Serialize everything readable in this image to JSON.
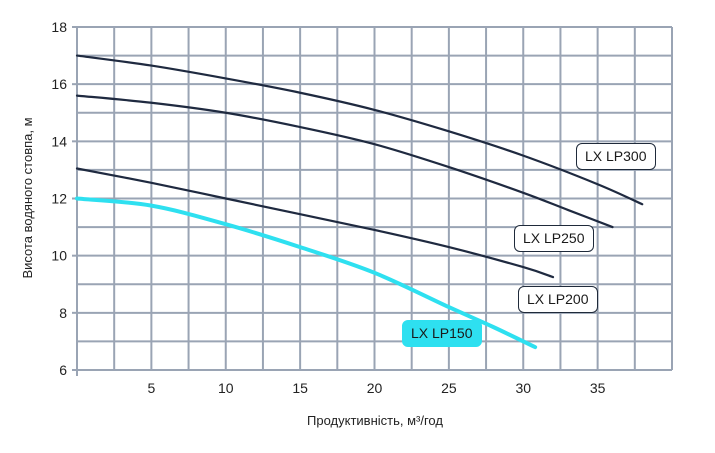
{
  "chart_data": {
    "type": "line",
    "title": "",
    "xlabel": "Продуктивність, м³/год",
    "ylabel": "Висота водяного стовпа, м",
    "xlim": [
      0,
      40
    ],
    "ylim": [
      6,
      18
    ],
    "x_ticks": [
      5,
      10,
      15,
      20,
      25,
      30,
      35
    ],
    "y_ticks": [
      6,
      8,
      10,
      12,
      14,
      16,
      18
    ],
    "grid": true,
    "x_grid_step": 2.5,
    "y_grid_step": 1,
    "series": [
      {
        "name": "LX LP300",
        "color": "#1f2a40",
        "points": [
          [
            0,
            17.0
          ],
          [
            5,
            16.65
          ],
          [
            10,
            16.2
          ],
          [
            15,
            15.7
          ],
          [
            20,
            15.1
          ],
          [
            25,
            14.35
          ],
          [
            30,
            13.5
          ],
          [
            35,
            12.5
          ],
          [
            38,
            11.8
          ]
        ]
      },
      {
        "name": "LX LP250",
        "color": "#1f2a40",
        "points": [
          [
            0,
            15.6
          ],
          [
            5,
            15.35
          ],
          [
            10,
            15.0
          ],
          [
            15,
            14.5
          ],
          [
            20,
            13.9
          ],
          [
            25,
            13.1
          ],
          [
            30,
            12.2
          ],
          [
            33,
            11.6
          ],
          [
            36,
            11.0
          ]
        ]
      },
      {
        "name": "LX LP200",
        "color": "#1f2a40",
        "points": [
          [
            0,
            13.05
          ],
          [
            5,
            12.55
          ],
          [
            10,
            12.0
          ],
          [
            15,
            11.45
          ],
          [
            20,
            10.9
          ],
          [
            25,
            10.3
          ],
          [
            30,
            9.6
          ],
          [
            32,
            9.25
          ]
        ]
      },
      {
        "name": "LX LP150",
        "color": "#2ee0f0",
        "points": [
          [
            0,
            12.0
          ],
          [
            5,
            11.75
          ],
          [
            10,
            11.1
          ],
          [
            15,
            10.3
          ],
          [
            20,
            9.4
          ],
          [
            25,
            8.2
          ],
          [
            28,
            7.5
          ],
          [
            30.8,
            6.8
          ]
        ]
      }
    ],
    "legend_labels": [
      "LX LP300",
      "LX LP250",
      "LX LP200",
      "LX LP150"
    ]
  },
  "labels": {
    "lp300": "LX LP300",
    "lp250": "LX LP250",
    "lp200": "LX LP200",
    "lp150": "LX LP150"
  }
}
